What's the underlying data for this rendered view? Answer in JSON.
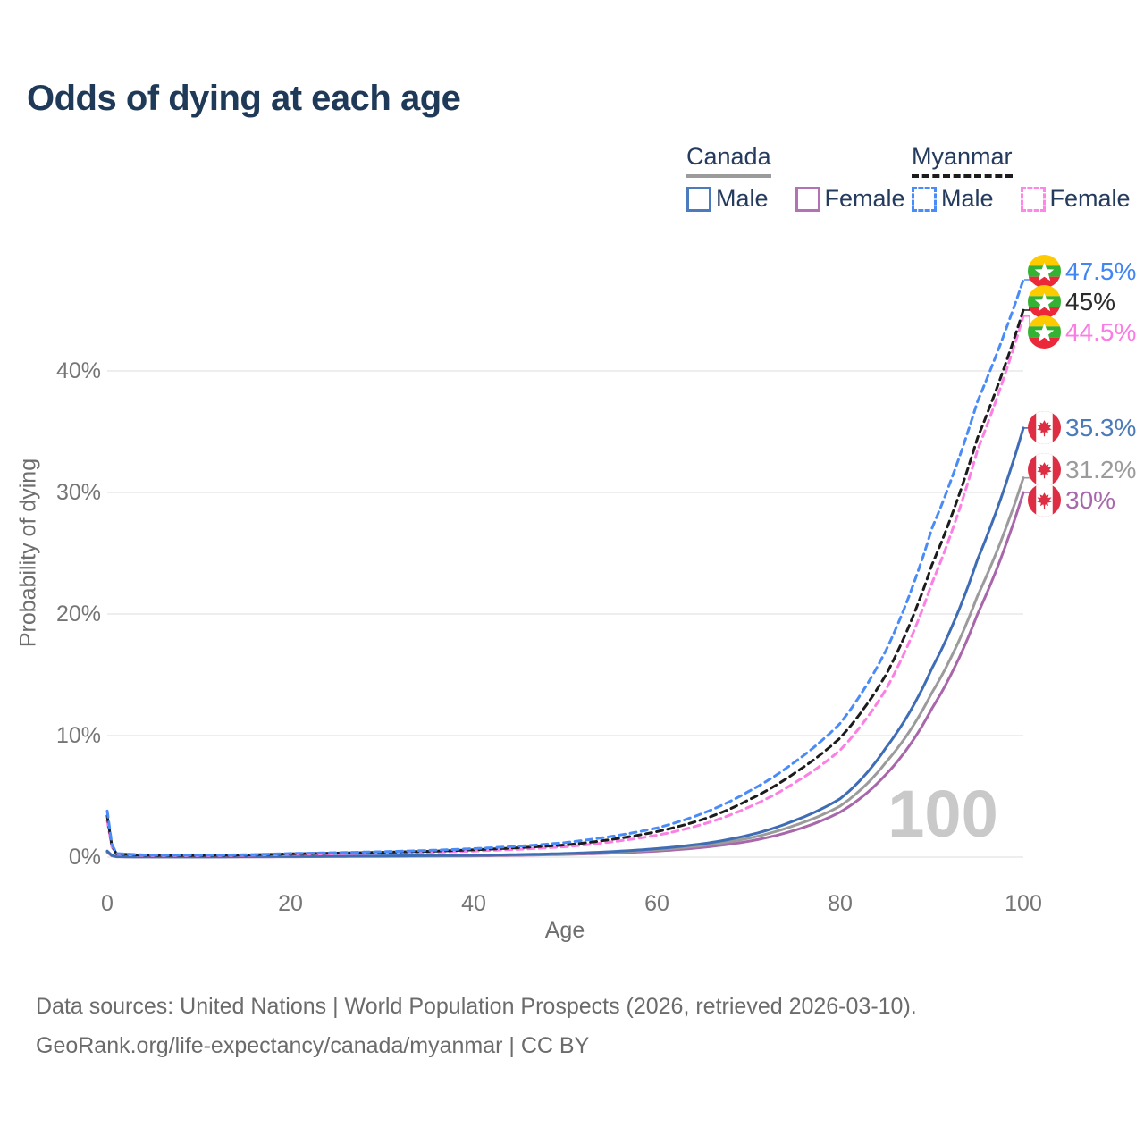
{
  "title": "Odds of dying at each age",
  "watermark": "100",
  "footer": {
    "line1": "Data sources: United Nations | World Population Prospects (2026, retrieved 2026-03-10).",
    "line2": "GeoRank.org/life-expectancy/canada/myanmar | CC BY"
  },
  "legend": {
    "groups": [
      {
        "name": "Canada",
        "line_style": "solid",
        "underline_color": "#9b9b9b",
        "items": [
          {
            "label": "Male",
            "color": "#4a7bbf"
          },
          {
            "label": "Female",
            "color": "#b472b6"
          }
        ]
      },
      {
        "name": "Myanmar",
        "line_style": "dashed",
        "underline_color": "#1c1c1c",
        "items": [
          {
            "label": "Male",
            "color": "#4a8cf7"
          },
          {
            "label": "Female",
            "color": "#fd86e8"
          }
        ]
      }
    ]
  },
  "chart_data": {
    "type": "line",
    "title": "Odds of dying at each age",
    "xlabel": "Age",
    "ylabel": "Probability of dying",
    "x_ticks": [
      0,
      20,
      40,
      60,
      80,
      100
    ],
    "y_ticks": [
      {
        "value": 0,
        "label": "0%"
      },
      {
        "value": 10,
        "label": "10%"
      },
      {
        "value": 20,
        "label": "20%"
      },
      {
        "value": 30,
        "label": "30%"
      },
      {
        "value": 40,
        "label": "40%"
      }
    ],
    "xlim": [
      0,
      100
    ],
    "ylim": [
      0,
      48
    ],
    "grid": "horizontal",
    "legend_position": "top-right",
    "series": [
      {
        "name": "Canada Female",
        "country": "Canada",
        "sex": "Female",
        "style": "solid",
        "color": "#a867ab",
        "end_label": "30%",
        "label_color": "#a867ab",
        "flag": "canada",
        "points": [
          [
            0,
            0.4
          ],
          [
            1,
            0.03
          ],
          [
            5,
            0.01
          ],
          [
            10,
            0.008
          ],
          [
            15,
            0.02
          ],
          [
            20,
            0.03
          ],
          [
            25,
            0.045
          ],
          [
            30,
            0.06
          ],
          [
            35,
            0.08
          ],
          [
            40,
            0.1
          ],
          [
            45,
            0.15
          ],
          [
            50,
            0.22
          ],
          [
            55,
            0.33
          ],
          [
            60,
            0.5
          ],
          [
            65,
            0.8
          ],
          [
            70,
            1.3
          ],
          [
            75,
            2.2
          ],
          [
            80,
            3.7
          ],
          [
            85,
            6.8
          ],
          [
            90,
            12.2
          ],
          [
            95,
            20.0
          ],
          [
            100,
            30.0
          ]
        ]
      },
      {
        "name": "Canada (both sexes)",
        "country": "Canada",
        "sex": "Both",
        "style": "solid",
        "color": "#9b9b9b",
        "end_label": "31.2%",
        "label_color": "#9b9b9b",
        "flag": "canada",
        "points": [
          [
            0,
            0.45
          ],
          [
            1,
            0.035
          ],
          [
            5,
            0.013
          ],
          [
            10,
            0.01
          ],
          [
            15,
            0.03
          ],
          [
            20,
            0.045
          ],
          [
            25,
            0.06
          ],
          [
            30,
            0.08
          ],
          [
            35,
            0.1
          ],
          [
            40,
            0.13
          ],
          [
            45,
            0.18
          ],
          [
            50,
            0.26
          ],
          [
            55,
            0.4
          ],
          [
            60,
            0.6
          ],
          [
            65,
            0.95
          ],
          [
            70,
            1.55
          ],
          [
            75,
            2.6
          ],
          [
            80,
            4.2
          ],
          [
            85,
            7.8
          ],
          [
            90,
            13.5
          ],
          [
            95,
            21.5
          ],
          [
            100,
            31.2
          ]
        ]
      },
      {
        "name": "Canada Male",
        "country": "Canada",
        "sex": "Male",
        "style": "solid",
        "color": "#3e6db5",
        "end_label": "35.3%",
        "label_color": "#4a7ab8",
        "flag": "canada",
        "points": [
          [
            0,
            0.5
          ],
          [
            1,
            0.04
          ],
          [
            5,
            0.015
          ],
          [
            10,
            0.012
          ],
          [
            15,
            0.04
          ],
          [
            20,
            0.06
          ],
          [
            25,
            0.08
          ],
          [
            30,
            0.1
          ],
          [
            35,
            0.12
          ],
          [
            40,
            0.15
          ],
          [
            45,
            0.21
          ],
          [
            50,
            0.3
          ],
          [
            55,
            0.45
          ],
          [
            60,
            0.7
          ],
          [
            65,
            1.1
          ],
          [
            70,
            1.8
          ],
          [
            75,
            3.0
          ],
          [
            80,
            4.8
          ],
          [
            85,
            9.0
          ],
          [
            90,
            15.5
          ],
          [
            95,
            24.5
          ],
          [
            100,
            35.3
          ]
        ]
      },
      {
        "name": "Myanmar Female",
        "country": "Myanmar",
        "sex": "Female",
        "style": "dashed",
        "color": "#fc7fe3",
        "end_label": "44.5%",
        "label_color": "#fb7ce4",
        "flag": "myanmar",
        "points": [
          [
            0,
            3.0
          ],
          [
            1,
            0.24
          ],
          [
            5,
            0.12
          ],
          [
            10,
            0.11
          ],
          [
            15,
            0.15
          ],
          [
            20,
            0.22
          ],
          [
            25,
            0.27
          ],
          [
            30,
            0.33
          ],
          [
            35,
            0.4
          ],
          [
            40,
            0.5
          ],
          [
            45,
            0.65
          ],
          [
            50,
            0.85
          ],
          [
            55,
            1.25
          ],
          [
            60,
            1.8
          ],
          [
            65,
            2.7
          ],
          [
            70,
            4.1
          ],
          [
            75,
            6.1
          ],
          [
            80,
            8.8
          ],
          [
            85,
            13.8
          ],
          [
            90,
            22.5
          ],
          [
            95,
            33.5
          ],
          [
            100,
            44.5
          ]
        ]
      },
      {
        "name": "Myanmar (both sexes)",
        "country": "Myanmar",
        "sex": "Both",
        "style": "dashed",
        "color": "#1c1c1c",
        "end_label": "45%",
        "label_color": "#2b2b2b",
        "flag": "myanmar",
        "points": [
          [
            0,
            3.4
          ],
          [
            1,
            0.27
          ],
          [
            5,
            0.14
          ],
          [
            10,
            0.13
          ],
          [
            15,
            0.18
          ],
          [
            20,
            0.27
          ],
          [
            25,
            0.33
          ],
          [
            30,
            0.4
          ],
          [
            35,
            0.48
          ],
          [
            40,
            0.6
          ],
          [
            45,
            0.78
          ],
          [
            50,
            1.0
          ],
          [
            55,
            1.45
          ],
          [
            60,
            2.1
          ],
          [
            65,
            3.1
          ],
          [
            70,
            4.7
          ],
          [
            75,
            6.9
          ],
          [
            80,
            9.8
          ],
          [
            85,
            15.0
          ],
          [
            90,
            24.0
          ],
          [
            95,
            34.5
          ],
          [
            100,
            45.0
          ]
        ]
      },
      {
        "name": "Myanmar Male",
        "country": "Myanmar",
        "sex": "Male",
        "style": "dashed",
        "color": "#4a8cf7",
        "end_label": "47.5%",
        "label_color": "#4285f4",
        "flag": "myanmar",
        "points": [
          [
            0,
            3.8
          ],
          [
            1,
            0.3
          ],
          [
            5,
            0.16
          ],
          [
            10,
            0.15
          ],
          [
            15,
            0.2
          ],
          [
            20,
            0.3
          ],
          [
            25,
            0.37
          ],
          [
            30,
            0.45
          ],
          [
            35,
            0.55
          ],
          [
            40,
            0.7
          ],
          [
            45,
            0.9
          ],
          [
            50,
            1.2
          ],
          [
            55,
            1.7
          ],
          [
            60,
            2.4
          ],
          [
            65,
            3.6
          ],
          [
            70,
            5.4
          ],
          [
            75,
            7.8
          ],
          [
            80,
            11.0
          ],
          [
            85,
            17.0
          ],
          [
            90,
            27.0
          ],
          [
            95,
            37.5
          ],
          [
            100,
            47.5
          ]
        ]
      }
    ]
  }
}
